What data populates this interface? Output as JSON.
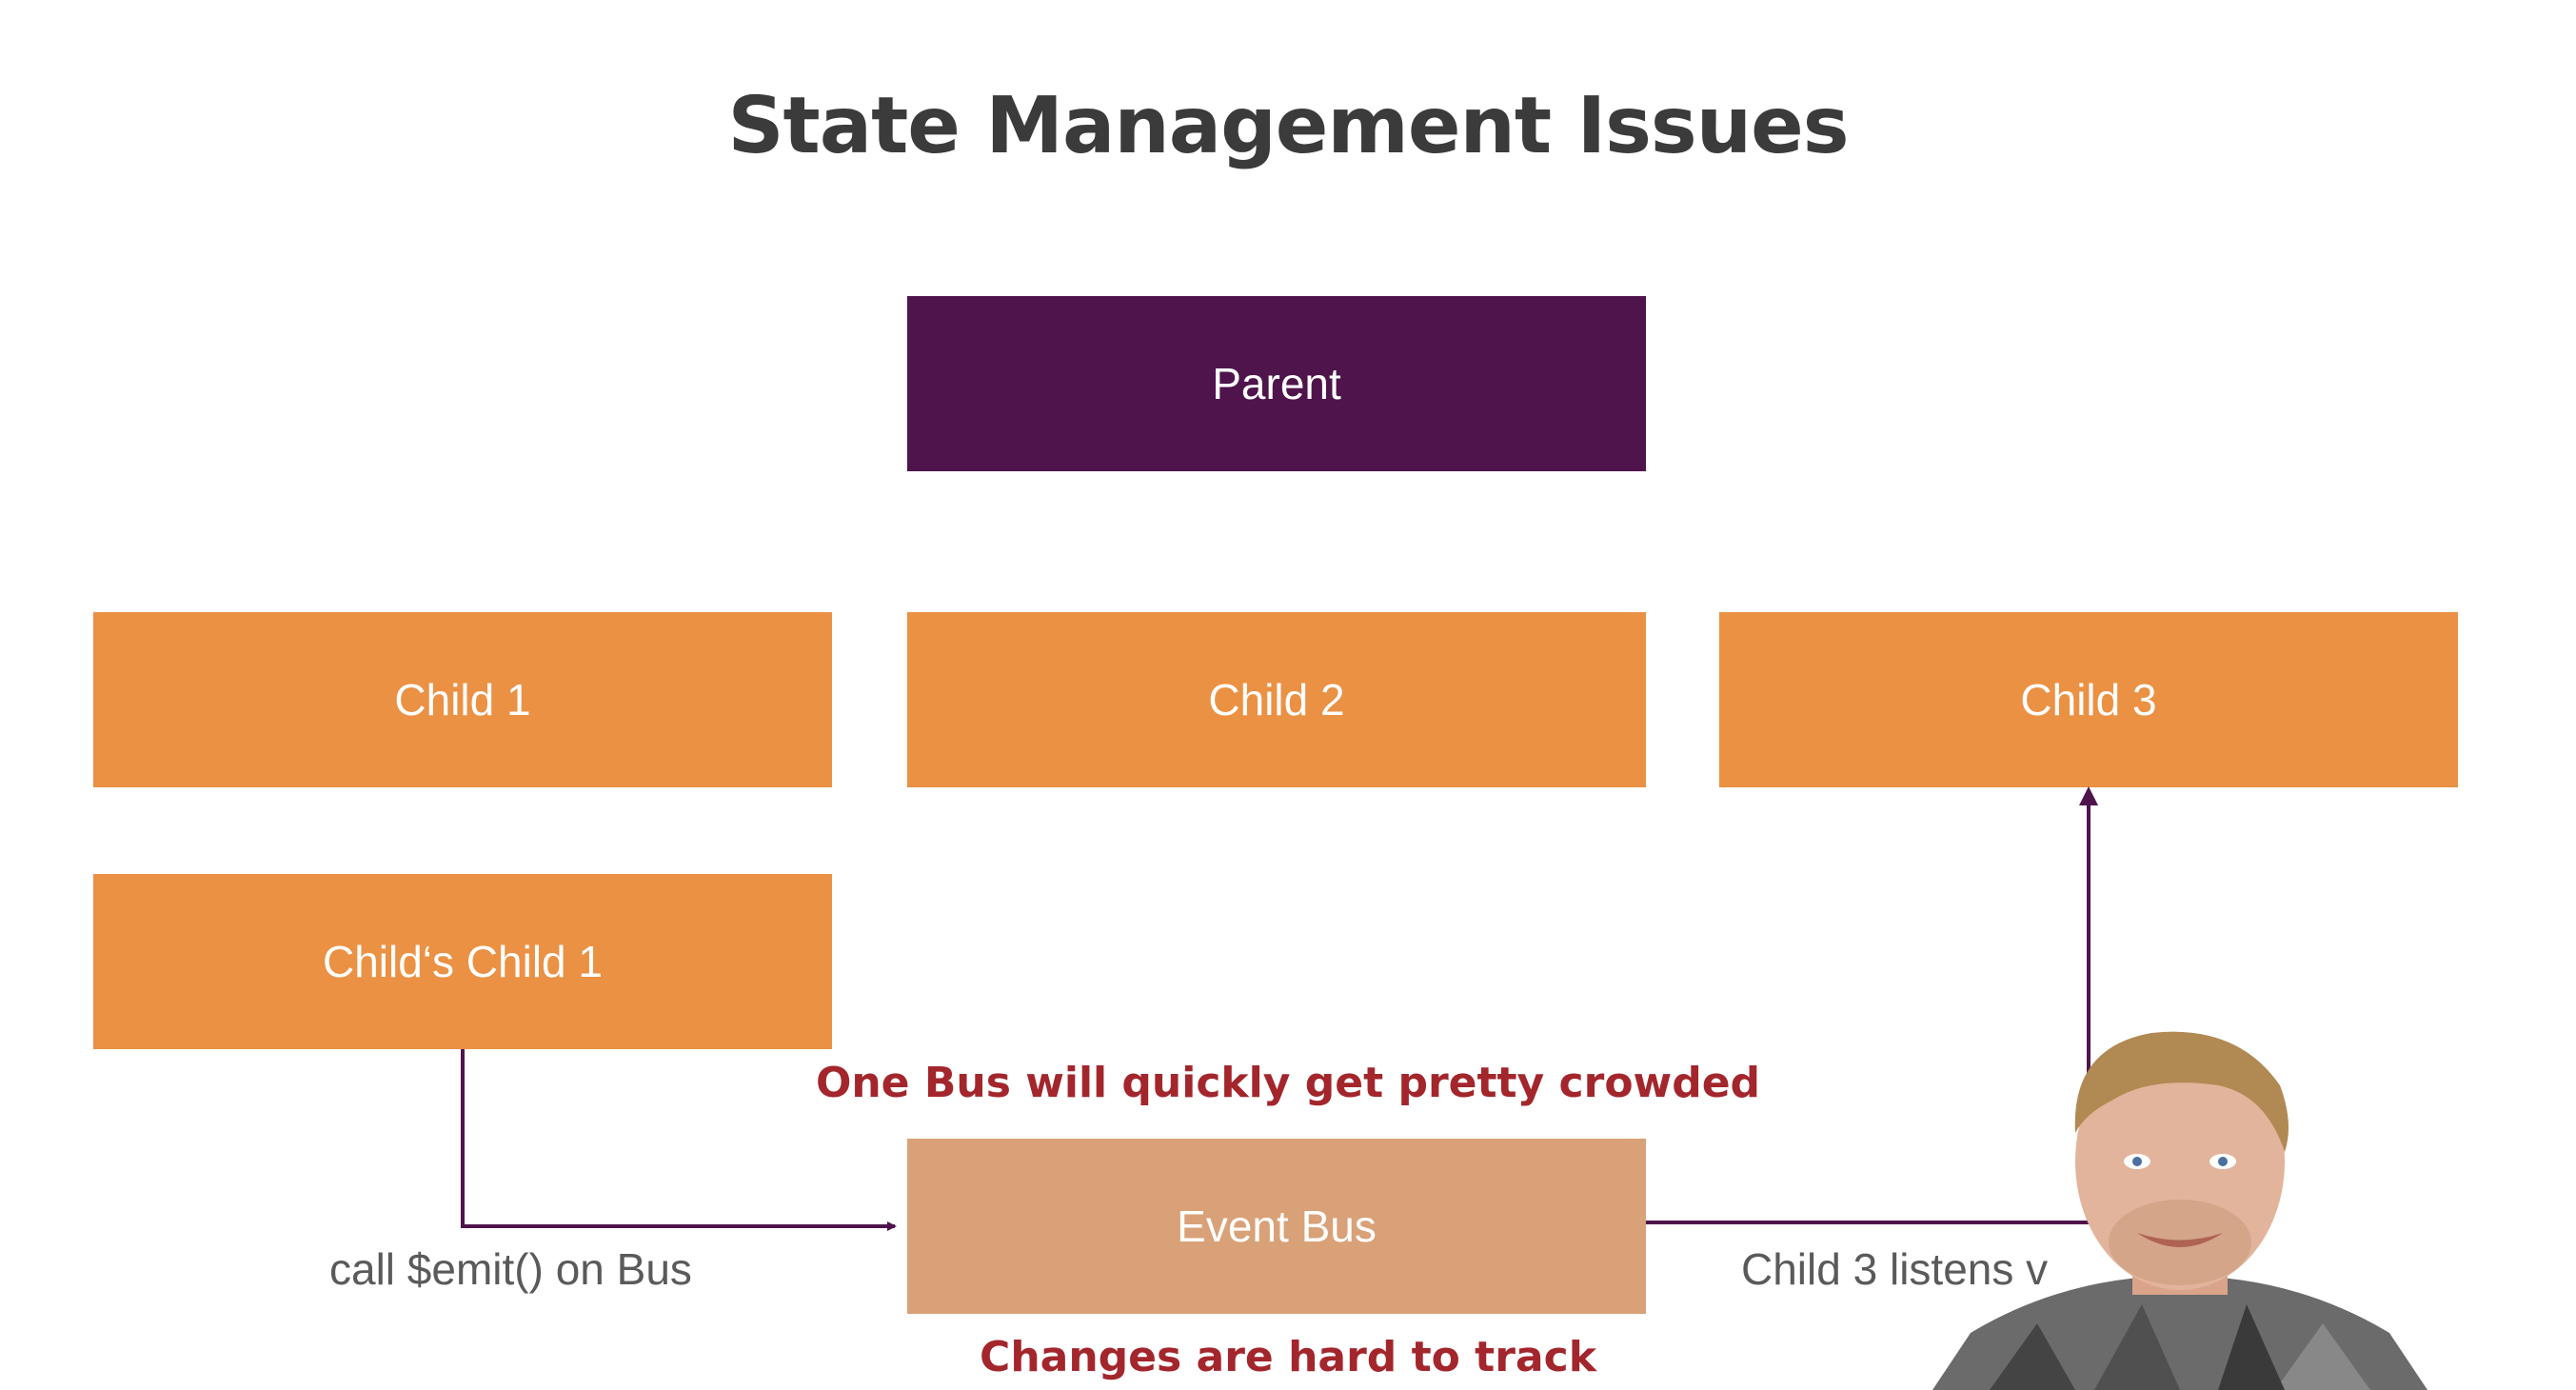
{
  "slide": {
    "title": "State Management Issues"
  },
  "boxes": {
    "parent": "Parent",
    "child1": "Child 1",
    "child2": "Child 2",
    "child3": "Child 3",
    "childs_child1": "Child‘s Child 1",
    "event_bus": "Event Bus"
  },
  "labels": {
    "emit": "call $emit() on Bus",
    "listen": "Child 3 listens v"
  },
  "warnings": {
    "crowded": "One Bus will quickly get pretty crowded",
    "tracking": "Changes are hard to track"
  },
  "colors": {
    "parent": "#4f144c",
    "child": "#eb9143",
    "event_bus": "#d9a177",
    "arrow": "#4f144c",
    "warning": "#a3262c"
  }
}
